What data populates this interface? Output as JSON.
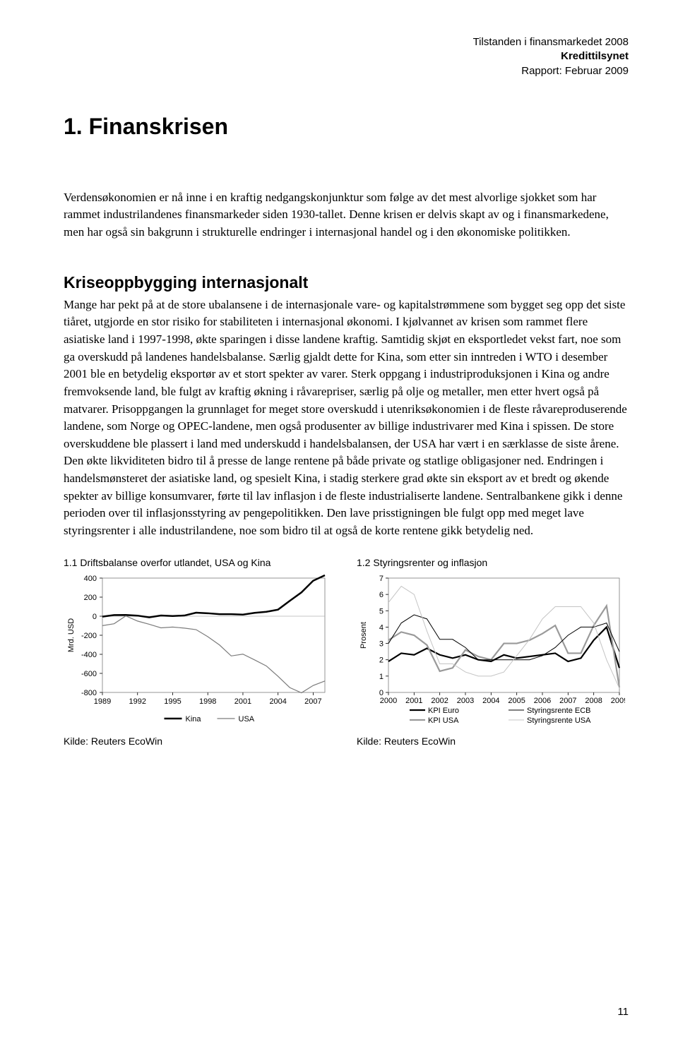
{
  "header": {
    "line1": "Tilstanden i finansmarkedet 2008",
    "line2": "Kredittilsynet",
    "line3": "Rapport: Februar 2009"
  },
  "chapter_title": "1. Finanskrisen",
  "intro": "Verdensøkonomien er nå inne i en kraftig nedgangskonjunktur som følge av det mest alvorlige sjokket som har rammet industrilandenes finansmarkeder siden 1930-tallet. Denne krisen er delvis skapt av og i finansmarkedene, men har også sin bakgrunn i strukturelle endringer i internasjonal handel og i den økonomiske politikken.",
  "section_title": "Kriseoppbygging internasjonalt",
  "body": "Mange har pekt på at de store ubalansene i de internasjonale vare- og kapitalstrømmene som bygget seg opp det siste tiåret, utgjorde en stor risiko for stabiliteten i internasjonal økonomi. I kjølvannet av krisen som rammet flere asiatiske land i 1997-1998, økte sparingen i disse landene kraftig. Samtidig skjøt en eksportledet vekst fart, noe som ga overskudd på landenes handelsbalanse. Særlig gjaldt dette for Kina, som etter sin inntreden i WTO i desember 2001 ble en betydelig eksportør av et stort spekter av varer. Sterk oppgang i industriproduksjonen i Kina og andre fremvoksende land, ble fulgt av kraftig økning i råvarepriser, særlig på olje og metaller, men etter hvert også på matvarer. Prisoppgangen la grunnlaget for meget store overskudd i utenriksøkonomien i de fleste råvareproduserende landene, som Norge og OPEC-landene, men også produsenter av billige industrivarer med Kina i spissen. De store overskuddene ble plassert i land med underskudd i handelsbalansen, der USA har vært i en særklasse de siste årene. Den økte likviditeten bidro til å presse de lange rentene på både private og statlige obligasjoner ned. Endringen i handelsmønsteret der asiatiske land, og spesielt Kina, i stadig sterkere grad økte sin eksport av et bredt og økende spekter av billige konsumvarer, førte til lav inflasjon i de fleste industrialiserte landene. Sentralbankene gikk i denne perioden over til inflasjonsstyring av pengepolitikken. Den lave prisstigningen ble fulgt opp med meget lave styringsrenter i alle industrilandene, noe som bidro til at også de korte rentene gikk betydelig ned.",
  "chart1": {
    "title": "1.1 Driftsbalanse overfor utlandet, USA og Kina",
    "type": "line",
    "ylabel": "Mrd. USD",
    "ylim": [
      -800,
      400
    ],
    "ytick_step": 200,
    "xticks": [
      1989,
      1992,
      1995,
      1998,
      2001,
      2004,
      2007
    ],
    "xlim": [
      1989,
      2008
    ],
    "grid_color": "#b0b0b0",
    "background_color": "#ffffff",
    "series": [
      {
        "name": "Kina",
        "color": "#000000",
        "width": 2.5,
        "x": [
          1989,
          1990,
          1991,
          1992,
          1993,
          1994,
          1995,
          1996,
          1997,
          1998,
          1999,
          2000,
          2001,
          2002,
          2003,
          2004,
          2005,
          2006,
          2007,
          2008
        ],
        "y": [
          -5,
          12,
          13,
          6,
          -12,
          7,
          2,
          7,
          37,
          31,
          21,
          21,
          17,
          35,
          46,
          69,
          161,
          250,
          372,
          430
        ]
      },
      {
        "name": "USA",
        "color": "#7c7c7c",
        "width": 1.2,
        "x": [
          1989,
          1990,
          1991,
          1992,
          1993,
          1994,
          1995,
          1996,
          1997,
          1998,
          1999,
          2000,
          2001,
          2002,
          2003,
          2004,
          2005,
          2006,
          2007,
          2008
        ],
        "y": [
          -99,
          -79,
          3,
          -51,
          -85,
          -122,
          -114,
          -125,
          -141,
          -215,
          -302,
          -417,
          -398,
          -459,
          -522,
          -631,
          -749,
          -804,
          -727,
          -680
        ]
      }
    ],
    "source": "Kilde: Reuters EcoWin"
  },
  "chart2": {
    "title": "1.2 Styringsrenter og inflasjon",
    "type": "line",
    "ylabel": "Prosent",
    "ylim": [
      0,
      7
    ],
    "ytick_step": 1,
    "xticks": [
      2000,
      2001,
      2002,
      2003,
      2004,
      2005,
      2006,
      2007,
      2008,
      2009
    ],
    "xlim": [
      2000,
      2009
    ],
    "grid_color": "#b0b0b0",
    "background_color": "#ffffff",
    "series": [
      {
        "name": "KPI Euro",
        "color": "#000000",
        "width": 2.2,
        "x": [
          2000,
          2000.5,
          2001,
          2001.5,
          2002,
          2002.5,
          2003,
          2003.5,
          2004,
          2004.5,
          2005,
          2005.5,
          2006,
          2006.5,
          2007,
          2007.5,
          2008,
          2008.5,
          2009
        ],
        "y": [
          1.9,
          2.4,
          2.3,
          2.7,
          2.3,
          2.1,
          2.3,
          2.0,
          1.9,
          2.3,
          2.1,
          2.2,
          2.3,
          2.4,
          1.9,
          2.1,
          3.2,
          4.0,
          1.5
        ]
      },
      {
        "name": "KPI USA",
        "color": "#9a9a9a",
        "width": 2.2,
        "x": [
          2000,
          2000.5,
          2001,
          2001.5,
          2002,
          2002.5,
          2003,
          2003.5,
          2004,
          2004.5,
          2005,
          2005.5,
          2006,
          2006.5,
          2007,
          2007.5,
          2008,
          2008.5,
          2009
        ],
        "y": [
          3.2,
          3.7,
          3.5,
          2.9,
          1.3,
          1.5,
          2.6,
          2.2,
          2.0,
          3.0,
          3.0,
          3.2,
          3.6,
          4.1,
          2.4,
          2.4,
          4.1,
          5.3,
          0.3
        ]
      },
      {
        "name": "Styringsrente ECB",
        "color": "#000000",
        "width": 1.0,
        "x": [
          2000,
          2000.5,
          2001,
          2001.5,
          2002,
          2002.5,
          2003,
          2003.5,
          2004,
          2004.5,
          2005,
          2005.5,
          2006,
          2006.5,
          2007,
          2007.5,
          2008,
          2008.5,
          2009
        ],
        "y": [
          3.0,
          4.25,
          4.75,
          4.5,
          3.25,
          3.25,
          2.75,
          2.0,
          2.0,
          2.0,
          2.0,
          2.0,
          2.25,
          2.75,
          3.5,
          4.0,
          4.0,
          4.25,
          2.5
        ]
      },
      {
        "name": "Styringsrente USA",
        "color": "#c4c4c4",
        "width": 1.0,
        "x": [
          2000,
          2000.5,
          2001,
          2001.5,
          2002,
          2002.5,
          2003,
          2003.5,
          2004,
          2004.5,
          2005,
          2005.5,
          2006,
          2006.5,
          2007,
          2007.5,
          2008,
          2008.5,
          2009
        ],
        "y": [
          5.5,
          6.5,
          6.0,
          3.75,
          1.75,
          1.75,
          1.25,
          1.0,
          1.0,
          1.25,
          2.25,
          3.25,
          4.5,
          5.25,
          5.25,
          5.25,
          4.25,
          2.0,
          0.25
        ]
      }
    ],
    "source": "Kilde: Reuters EcoWin"
  },
  "pagenum": "11"
}
